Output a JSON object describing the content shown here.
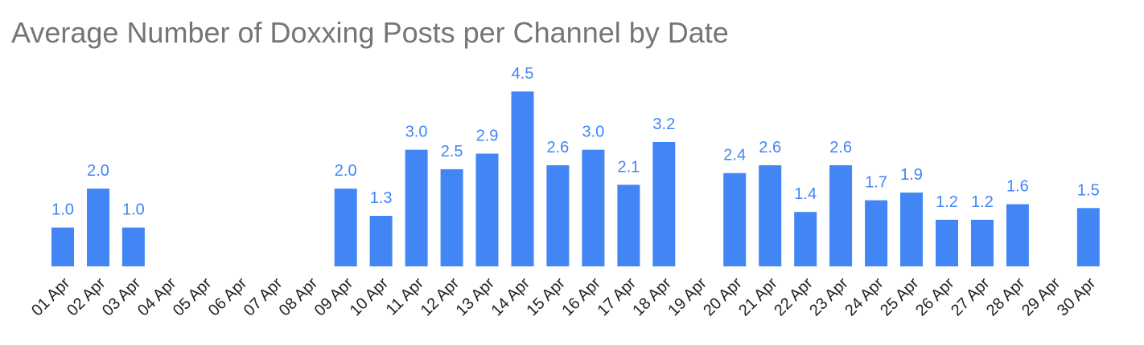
{
  "chart_data": {
    "type": "bar",
    "title": "Average Number of Doxxing Posts per Channel by Date",
    "xlabel": "",
    "ylabel": "",
    "ylim": [
      0,
      4.5
    ],
    "grid": false,
    "legend": "none",
    "bar_color": "#4285f4",
    "categories": [
      "01 Apr",
      "02 Apr",
      "03 Apr",
      "04 Apr",
      "05 Apr",
      "06 Apr",
      "07 Apr",
      "08 Apr",
      "09 Apr",
      "10 Apr",
      "11 Apr",
      "12 Apr",
      "13 Apr",
      "14 Apr",
      "15 Apr",
      "16 Apr",
      "17 Apr",
      "18 Apr",
      "19 Apr",
      "20 Apr",
      "21 Apr",
      "22 Apr",
      "23 Apr",
      "24 Apr",
      "25 Apr",
      "26 Apr",
      "27 Apr",
      "28 Apr",
      "29 Apr",
      "30 Apr"
    ],
    "values": [
      1.0,
      2.0,
      1.0,
      null,
      null,
      null,
      null,
      null,
      2.0,
      1.3,
      3.0,
      2.5,
      2.9,
      4.5,
      2.6,
      3.0,
      2.1,
      3.2,
      null,
      2.4,
      2.6,
      1.4,
      2.6,
      1.7,
      1.9,
      1.2,
      1.2,
      1.6,
      null,
      1.5
    ],
    "data_labels": [
      "1.0",
      "2.0",
      "1.0",
      "",
      "",
      "",
      "",
      "",
      "2.0",
      "1.3",
      "3.0",
      "2.5",
      "2.9",
      "4.5",
      "2.6",
      "3.0",
      "2.1",
      "3.2",
      "",
      "2.4",
      "2.6",
      "1.4",
      "2.6",
      "1.7",
      "1.9",
      "1.2",
      "1.2",
      "1.6",
      "",
      "1.5"
    ]
  }
}
